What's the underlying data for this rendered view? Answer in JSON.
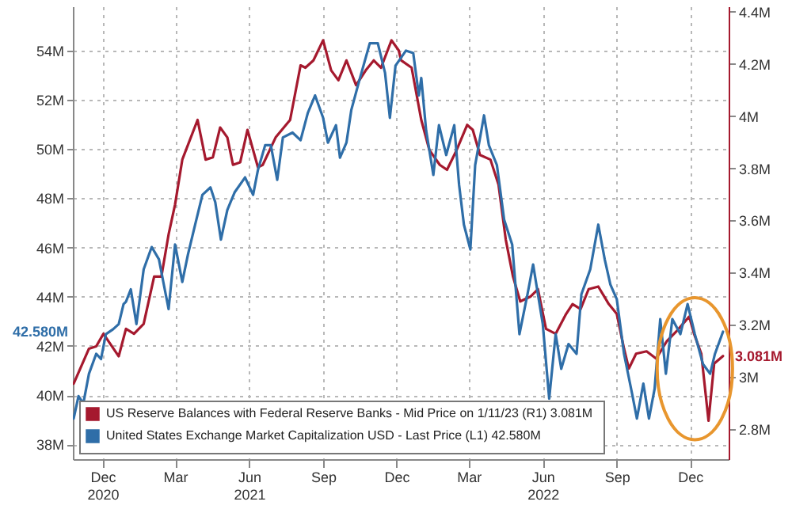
{
  "chart_data": {
    "type": "line",
    "xlim": [
      "2020-10-25",
      "2023-01-18"
    ],
    "xticks": [
      {
        "value": "2020-12-01",
        "label": "Dec 2020"
      },
      {
        "value": "2021-03-01",
        "label": "Mar"
      },
      {
        "value": "2021-06-01",
        "label": "Jun 2021"
      },
      {
        "value": "2021-09-01",
        "label": "Sep"
      },
      {
        "value": "2021-12-01",
        "label": "Dec"
      },
      {
        "value": "2022-03-01",
        "label": "Mar"
      },
      {
        "value": "2022-06-01",
        "label": "Jun 2022"
      },
      {
        "value": "2022-09-01",
        "label": "Sep"
      },
      {
        "value": "2022-12-01",
        "label": "Dec"
      }
    ],
    "ylim": [
      37.4,
      55.8
    ],
    "yticks": [
      {
        "value": 38,
        "label": "38M"
      },
      {
        "value": 40,
        "label": "40M"
      },
      {
        "value": 42,
        "label": "42M"
      },
      {
        "value": 44,
        "label": "44M"
      },
      {
        "value": 46,
        "label": "46M"
      },
      {
        "value": 48,
        "label": "48M"
      },
      {
        "value": 50,
        "label": "50M"
      },
      {
        "value": 52,
        "label": "52M"
      },
      {
        "value": 54,
        "label": "54M"
      }
    ],
    "y2lim": [
      2.686,
      4.42
    ],
    "y2ticks": [
      {
        "value": 2.8,
        "label": "2.8M"
      },
      {
        "value": 3,
        "label": "3M"
      },
      {
        "value": 3.2,
        "label": "3.2M"
      },
      {
        "value": 3.4,
        "label": "3.4M"
      },
      {
        "value": 3.6,
        "label": "3.6M"
      },
      {
        "value": 3.8,
        "label": "3.8M"
      },
      {
        "value": 4,
        "label": "4M"
      },
      {
        "value": 4.2,
        "label": "4.2M"
      },
      {
        "value": 4.4,
        "label": "4.4M"
      }
    ],
    "grid": true,
    "legend": "bottom left",
    "line_style": "solid",
    "annotations": [
      "3.081M",
      "42.580M"
    ],
    "series": [
      {
        "name": "US Reserve Balances with Federal Reserve Banks - Mid Price on 1/11/23 (R1)  3.081M",
        "color": "#a5192e",
        "axis": "y2",
        "x": [
          "2020-10-26",
          "2020-11-14",
          "2020-11-23",
          "2020-12-02",
          "2020-12-21",
          "2020-12-30",
          "2021-01-09",
          "2021-01-21",
          "2021-02-03",
          "2021-02-12",
          "2021-02-21",
          "2021-03-01",
          "2021-03-10",
          "2021-03-29",
          "2021-04-08",
          "2021-04-17",
          "2021-04-26",
          "2021-05-05",
          "2021-05-12",
          "2021-05-21",
          "2021-05-30",
          "2021-06-12",
          "2021-06-18",
          "2021-07-04",
          "2021-07-22",
          "2021-08-04",
          "2021-08-10",
          "2021-08-20",
          "2021-09-01",
          "2021-09-11",
          "2021-09-20",
          "2021-09-30",
          "2021-10-12",
          "2021-10-24",
          "2021-11-03",
          "2021-11-12",
          "2021-11-25",
          "2021-12-04",
          "2021-12-07",
          "2021-12-20",
          "2022-01-01",
          "2022-01-11",
          "2022-01-24",
          "2022-02-02",
          "2022-02-14",
          "2022-02-27",
          "2022-03-06",
          "2022-03-15",
          "2022-03-28",
          "2022-04-07",
          "2022-04-16",
          "2022-04-25",
          "2022-05-04",
          "2022-05-17",
          "2022-05-26",
          "2022-06-05",
          "2022-06-17",
          "2022-06-30",
          "2022-07-08",
          "2022-07-18",
          "2022-07-28",
          "2022-08-09",
          "2022-08-22",
          "2022-09-01",
          "2022-09-10",
          "2022-09-16",
          "2022-09-25",
          "2022-10-08",
          "2022-10-20",
          "2022-11-02",
          "2022-11-14",
          "2022-11-30",
          "2022-12-06",
          "2022-12-15",
          "2022-12-24",
          "2022-12-31",
          "2023-01-11"
        ],
        "values": [
          2.975,
          3.109,
          3.118,
          3.166,
          3.08,
          3.185,
          3.166,
          3.204,
          3.385,
          3.385,
          3.547,
          3.661,
          3.833,
          3.985,
          3.833,
          3.842,
          3.956,
          3.918,
          3.813,
          3.823,
          3.947,
          3.804,
          3.813,
          3.918,
          3.985,
          4.194,
          4.185,
          4.213,
          4.29,
          4.175,
          4.137,
          4.213,
          4.118,
          4.175,
          4.213,
          4.185,
          4.29,
          4.251,
          4.213,
          4.185,
          3.985,
          3.87,
          3.813,
          3.794,
          3.87,
          3.966,
          3.947,
          3.851,
          3.833,
          3.737,
          3.527,
          3.385,
          3.29,
          3.309,
          3.337,
          3.185,
          3.166,
          3.242,
          3.28,
          3.261,
          3.337,
          3.347,
          3.28,
          3.242,
          3.109,
          3.033,
          3.09,
          3.099,
          3.071,
          3.137,
          3.175,
          3.232,
          3.166,
          3.09,
          2.833,
          3.052,
          3.081
        ]
      },
      {
        "name": "United States Exchange Market Capitalization USD - Last Price (L1)  42.580M",
        "color": "#2f6ea8",
        "x": [
          "2020-10-26",
          "2020-11-01",
          "2020-11-07",
          "2020-11-14",
          "2020-11-23",
          "2020-11-29",
          "2020-12-05",
          "2020-12-14",
          "2020-12-21",
          "2020-12-27",
          "2020-12-30",
          "2021-01-05",
          "2021-01-12",
          "2021-01-21",
          "2021-01-31",
          "2021-02-09",
          "2021-02-15",
          "2021-02-21",
          "2021-03-01",
          "2021-03-10",
          "2021-03-17",
          "2021-03-26",
          "2021-04-04",
          "2021-04-14",
          "2021-04-20",
          "2021-04-27",
          "2021-05-05",
          "2021-05-14",
          "2021-05-27",
          "2021-06-06",
          "2021-06-12",
          "2021-06-21",
          "2021-06-28",
          "2021-07-06",
          "2021-07-13",
          "2021-07-25",
          "2021-08-04",
          "2021-08-13",
          "2021-08-22",
          "2021-09-01",
          "2021-09-07",
          "2021-09-17",
          "2021-09-22",
          "2021-09-30",
          "2021-10-06",
          "2021-10-16",
          "2021-10-29",
          "2021-11-08",
          "2021-11-17",
          "2021-11-23",
          "2021-11-30",
          "2021-12-13",
          "2021-12-22",
          "2021-12-29",
          "2022-01-01",
          "2022-01-07",
          "2022-01-16",
          "2022-01-23",
          "2022-02-01",
          "2022-02-11",
          "2022-02-17",
          "2022-02-23",
          "2022-03-03",
          "2022-03-09",
          "2022-03-20",
          "2022-03-26",
          "2022-04-05",
          "2022-04-14",
          "2022-04-24",
          "2022-05-03",
          "2022-05-13",
          "2022-05-20",
          "2022-05-26",
          "2022-06-01",
          "2022-06-09",
          "2022-06-17",
          "2022-06-24",
          "2022-07-03",
          "2022-07-13",
          "2022-07-19",
          "2022-07-30",
          "2022-08-09",
          "2022-08-17",
          "2022-08-24",
          "2022-09-01",
          "2022-09-10",
          "2022-09-20",
          "2022-09-26",
          "2022-10-04",
          "2022-10-11",
          "2022-10-18",
          "2022-10-25",
          "2022-11-01",
          "2022-11-09",
          "2022-11-19",
          "2022-11-28",
          "2022-12-04",
          "2022-12-07",
          "2022-12-17",
          "2022-12-26",
          "2023-01-01",
          "2023-01-11"
        ],
        "values": [
          39.05,
          39.96,
          39.66,
          40.87,
          41.68,
          41.47,
          42.48,
          42.68,
          42.89,
          43.7,
          43.8,
          44.3,
          42.89,
          45.11,
          46.02,
          45.52,
          44.5,
          43.5,
          46.12,
          44.6,
          45.71,
          46.93,
          48.14,
          48.44,
          47.84,
          46.32,
          47.53,
          48.24,
          48.85,
          48.14,
          49.15,
          50.16,
          50.16,
          48.75,
          50.47,
          50.67,
          50.36,
          51.47,
          52.18,
          51.27,
          50.26,
          50.97,
          49.65,
          50.26,
          51.58,
          52.79,
          54.3,
          54.3,
          53.09,
          51.27,
          53.39,
          54.0,
          53.9,
          52.18,
          52.89,
          50.77,
          48.95,
          50.97,
          49.76,
          50.97,
          48.55,
          46.93,
          45.92,
          49.35,
          51.37,
          50.16,
          49.35,
          47.13,
          46.12,
          42.48,
          44.1,
          45.31,
          44.1,
          42.89,
          39.86,
          42.48,
          41.07,
          42.08,
          41.68,
          44.1,
          45.11,
          46.93,
          45.52,
          44.5,
          43.9,
          41.68,
          40.06,
          39.05,
          40.47,
          39.05,
          40.26,
          43.09,
          40.87,
          43.09,
          42.48,
          43.7,
          42.89,
          42.48,
          41.27,
          40.87,
          41.68,
          42.58
        ]
      }
    ]
  }
}
